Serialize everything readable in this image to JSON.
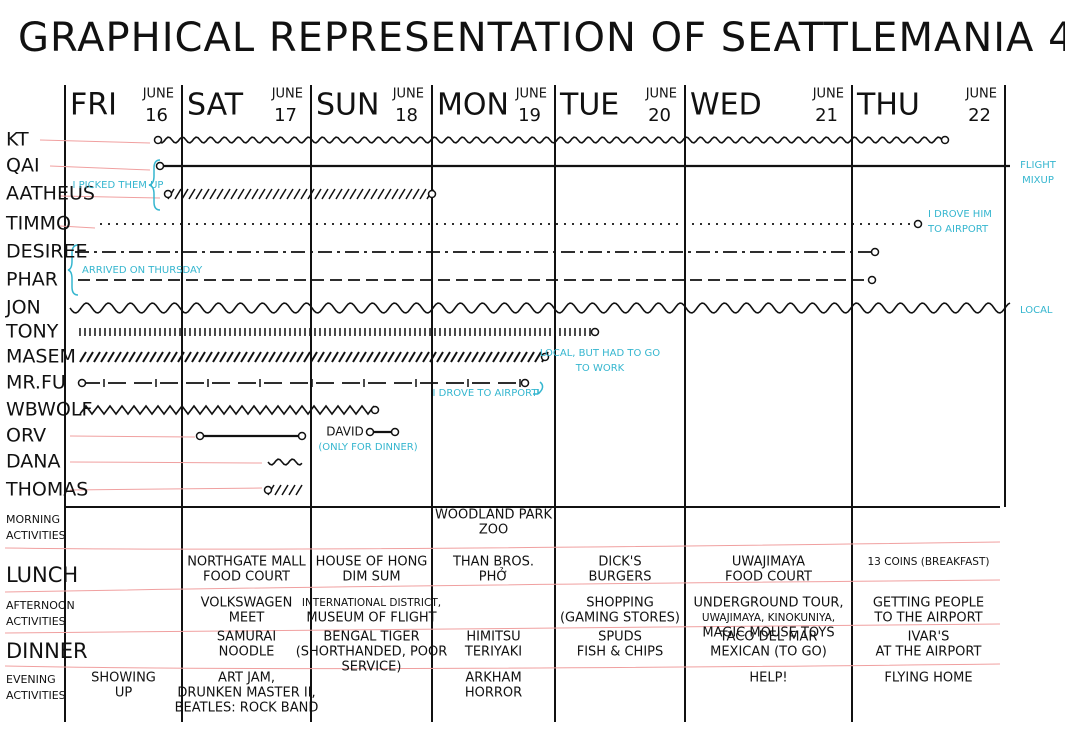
{
  "title": "GRAPHICAL REPRESENTATION OF SEATTLEMANIA 4",
  "days": [
    {
      "name": "FRI",
      "month": "JUNE",
      "date": "16"
    },
    {
      "name": "SAT",
      "month": "JUNE",
      "date": "17"
    },
    {
      "name": "SUN",
      "month": "JUNE",
      "date": "18"
    },
    {
      "name": "MON",
      "month": "JUNE",
      "date": "19"
    },
    {
      "name": "TUE",
      "month": "JUNE",
      "date": "20"
    },
    {
      "name": "WED",
      "month": "JUNE",
      "date": "21"
    },
    {
      "name": "THU",
      "month": "JUNE",
      "date": "22"
    }
  ],
  "people": [
    "KT",
    "QAI",
    "AATHEUS",
    "TIMMO",
    "DESIREE",
    "PHAR",
    "JON",
    "TONY",
    "MASEM",
    "MR.FU",
    "WBWOLF",
    "ORV",
    "DANA",
    "THOMAS"
  ],
  "annotations": [
    {
      "lines": [
        "I PICKED THEM UP"
      ]
    },
    {
      "lines": [
        "FLIGHT",
        "MIXUP"
      ]
    },
    {
      "lines": [
        "I DROVE HIM",
        "TO AIRPORT"
      ]
    },
    {
      "lines": [
        "ARRIVED ON THURSDAY"
      ]
    },
    {
      "lines": [
        "LOCAL"
      ]
    },
    {
      "lines": [
        "LOCAL, BUT HAD TO GO",
        "TO WORK"
      ]
    },
    {
      "lines": [
        "I DROVE TO AIRPORT"
      ]
    },
    {
      "lines": [
        "DAVID"
      ]
    },
    {
      "lines": [
        "(ONLY FOR DINNER)"
      ]
    }
  ],
  "activities": {
    "rows": [
      {
        "label": [
          "MORNING",
          "ACTIVITIES"
        ],
        "cells": [
          null,
          null,
          null,
          [
            "WOODLAND PARK",
            "ZOO"
          ],
          null,
          null,
          null
        ]
      },
      {
        "label": [
          "LUNCH"
        ],
        "cells": [
          null,
          [
            "NORTHGATE MALL",
            "FOOD COURT"
          ],
          [
            "HOUSE OF HONG",
            "DIM SUM"
          ],
          [
            "THAN BROS.",
            "PHỞ"
          ],
          [
            "DICK'S",
            "BURGERS"
          ],
          [
            "UWAJIMAYA",
            "FOOD COURT"
          ],
          [
            "13 COINS (BREAKFAST)"
          ]
        ]
      },
      {
        "label": [
          "AFTERNOON",
          "ACTIVITIES"
        ],
        "cells": [
          null,
          [
            "VOLKSWAGEN",
            "MEET"
          ],
          [
            "INTERNATIONAL DISTRICT,",
            "MUSEUM OF FLIGHT"
          ],
          null,
          [
            "SHOPPING",
            "(GAMING STORES)"
          ],
          [
            "UNDERGROUND TOUR,",
            "UWAJIMAYA, KINOKUNIYA,",
            "MAGIC MOUSE TOYS"
          ],
          [
            "GETTING PEOPLE",
            "TO THE AIRPORT"
          ]
        ]
      },
      {
        "label": [
          "DINNER"
        ],
        "cells": [
          null,
          [
            "SAMURAI",
            "NOODLE"
          ],
          [
            "BENGAL TIGER",
            "(SHORTHANDED, POOR",
            "SERVICE)"
          ],
          [
            "HIMITSU",
            "TERIYAKI"
          ],
          [
            "SPUDS",
            "FISH & CHIPS"
          ],
          [
            "TACO DEL MAR",
            "MEXICAN (TO GO)"
          ],
          [
            "IVAR'S",
            "AT THE AIRPORT"
          ]
        ]
      },
      {
        "label": [
          "EVENING",
          "ACTIVITIES"
        ],
        "cells": [
          [
            "SHOWING",
            "UP"
          ],
          [
            "ART JAM,",
            "DRUNKEN MASTER II,",
            "BEATLES: ROCK BAND"
          ],
          null,
          [
            "ARKHAM",
            "HORROR"
          ],
          null,
          [
            "HELP!"
          ],
          [
            "FLYING HOME"
          ]
        ]
      }
    ]
  }
}
